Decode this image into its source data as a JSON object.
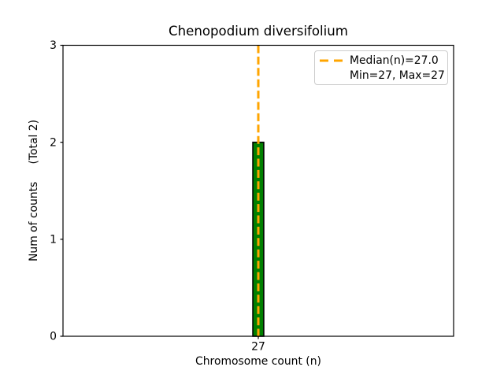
{
  "chart_data": {
    "type": "bar",
    "title": "Chenopodium diversifolium",
    "xlabel": "Chromosome count (n)",
    "ylabel": "Num of counts     (Total 2)",
    "total_counts": 2,
    "categories": [
      27
    ],
    "values": [
      2
    ],
    "bars": [
      {
        "x": 27,
        "height": 2
      }
    ],
    "bar_width": 0.028,
    "bar_color": "#008000",
    "bar_edge_color": "#000000",
    "median_line": {
      "x": 27,
      "style": "dashed",
      "color": "#FFA500",
      "label": "Median(n)=27.0"
    },
    "min": 27,
    "max": 27,
    "xlim": [
      26.5,
      27.5
    ],
    "ylim": [
      0,
      3
    ],
    "xticks": [
      27
    ],
    "yticks": [
      0,
      1,
      2,
      3
    ],
    "grid": false,
    "legend": {
      "position": "upper right",
      "entries": [
        {
          "label": "Median(n)=27.0",
          "marker": "dashed-line",
          "color": "#FFA500"
        },
        {
          "label": "Min=27, Max=27",
          "marker": "none",
          "color": ""
        }
      ]
    }
  }
}
